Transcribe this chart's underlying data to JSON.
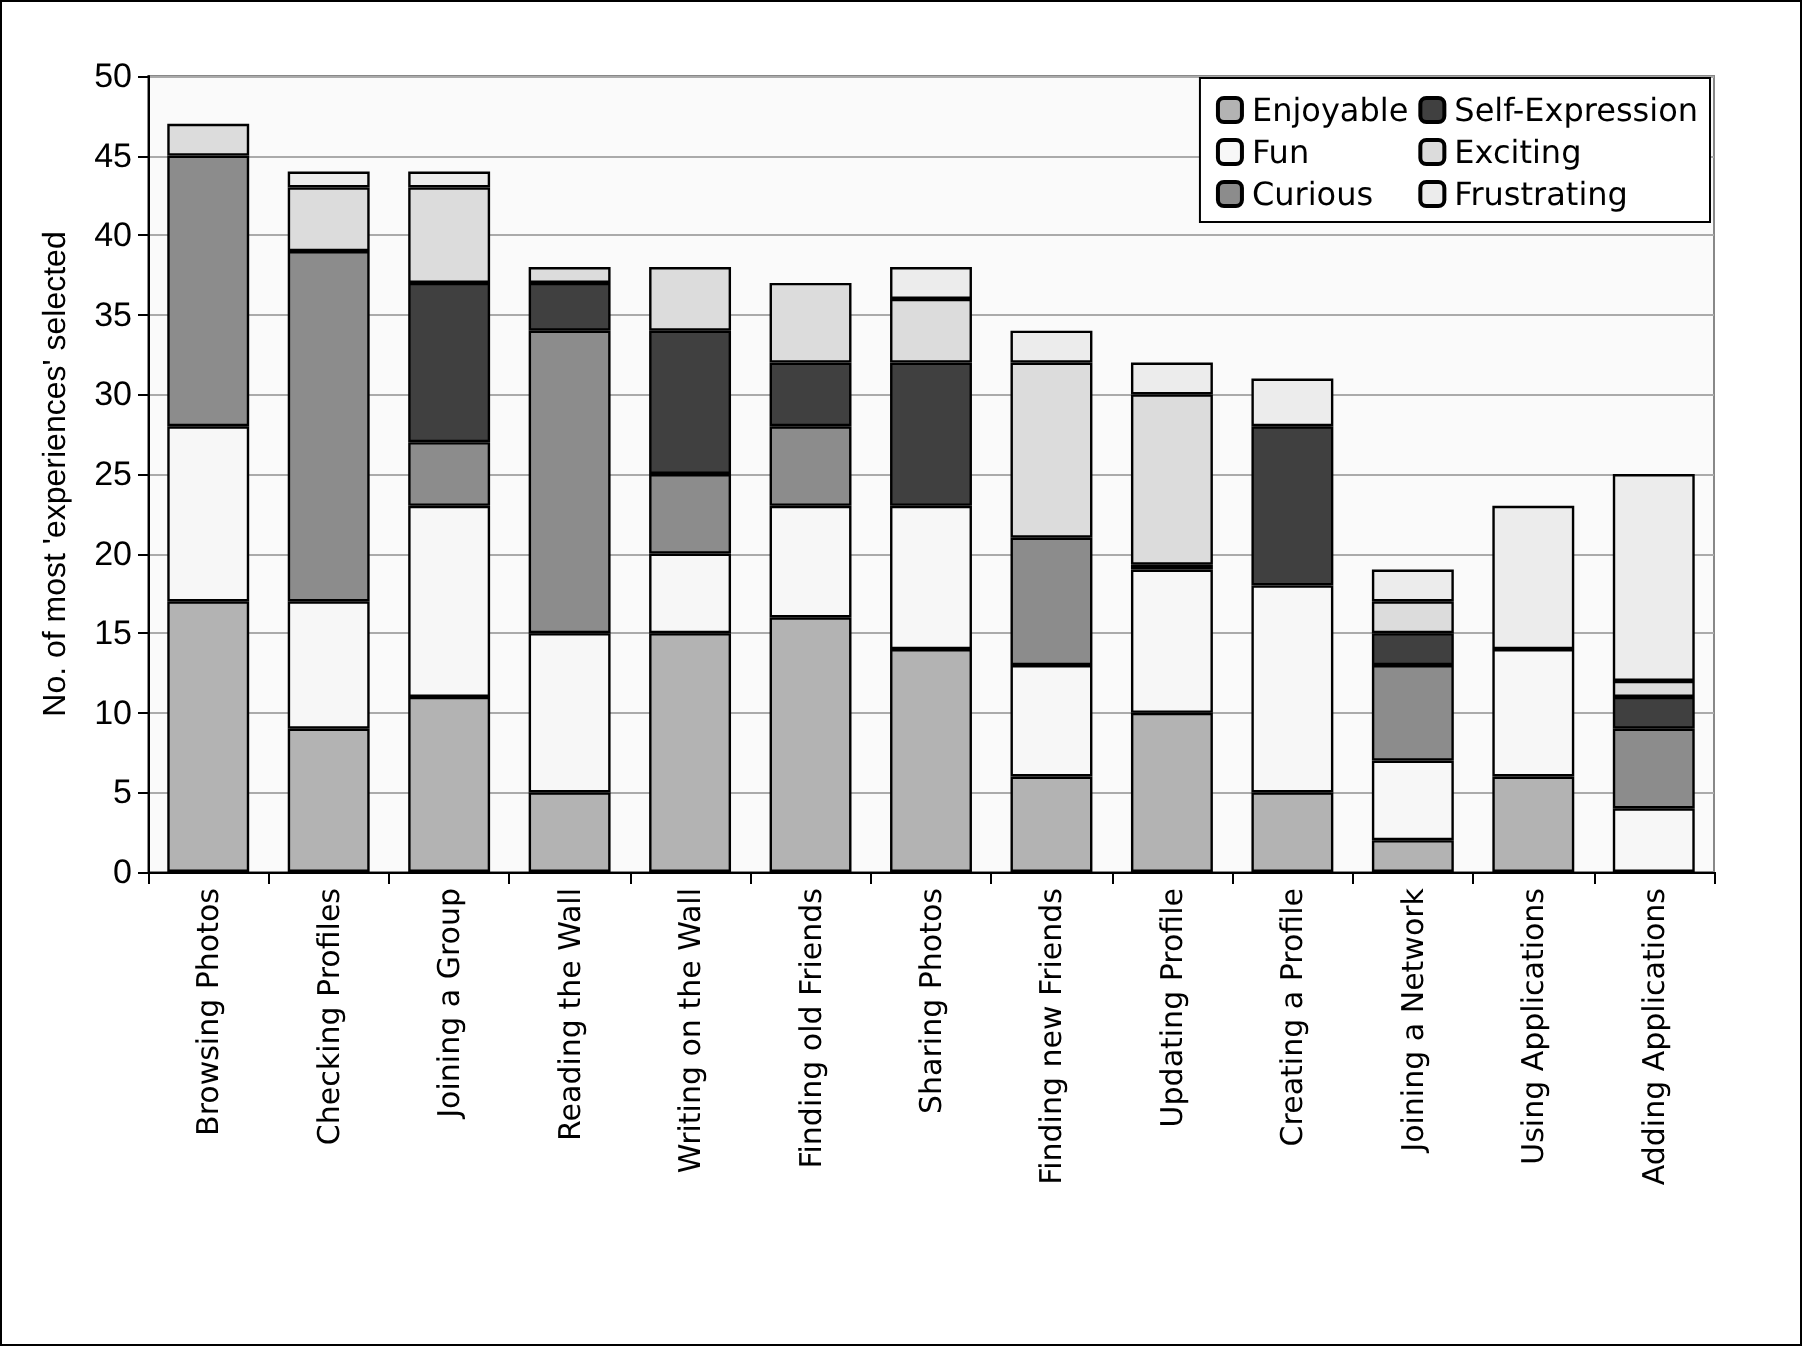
{
  "chart_data": {
    "type": "bar",
    "stacked": true,
    "ylabel": "No. of most 'experiences' selected",
    "categories": [
      "Browsing Photos",
      "Checking Profiles",
      "Joining a Group",
      "Reading the Wall",
      "Writing on the Wall",
      "Finding old Friends",
      "Sharing Photos",
      "Finding new Friends",
      "Updating Profile",
      "Creating a Profile",
      "Joining a Network",
      "Using Applications",
      "Adding Applications"
    ],
    "series": [
      {
        "name": "Enjoyable",
        "color": "#b3b3b3",
        "values": [
          17,
          9,
          11,
          5,
          15,
          16,
          14,
          6,
          10,
          5,
          2,
          6,
          null
        ]
      },
      {
        "name": "Fun",
        "color": "#f7f7f7",
        "values": [
          11,
          8,
          12,
          10,
          5,
          7,
          9,
          7,
          9,
          13,
          5,
          8,
          4
        ]
      },
      {
        "name": "Curious",
        "color": "#8c8c8c",
        "values": [
          17,
          22,
          4,
          19,
          5,
          5,
          null,
          8,
          null,
          null,
          6,
          null,
          5
        ]
      },
      {
        "name": "Self-Expression",
        "color": "#404040",
        "values": [
          null,
          null,
          10,
          3,
          9,
          4,
          9,
          null,
          0.3,
          10,
          2,
          null,
          2
        ]
      },
      {
        "name": "Exciting",
        "color": "#dcdcdc",
        "values": [
          2,
          4,
          6,
          1,
          4,
          5,
          4,
          11,
          10.7,
          null,
          2,
          null,
          1
        ]
      },
      {
        "name": "Frustrating",
        "color": "#ececec",
        "values": [
          null,
          1,
          1,
          null,
          null,
          null,
          2,
          2,
          2,
          3,
          2,
          9,
          13
        ]
      }
    ],
    "ylim": [
      0,
      50
    ],
    "yticks": [
      0,
      5,
      10,
      15,
      20,
      25,
      30,
      35,
      40,
      45,
      50
    ],
    "grid": "y",
    "legend": "top right"
  }
}
